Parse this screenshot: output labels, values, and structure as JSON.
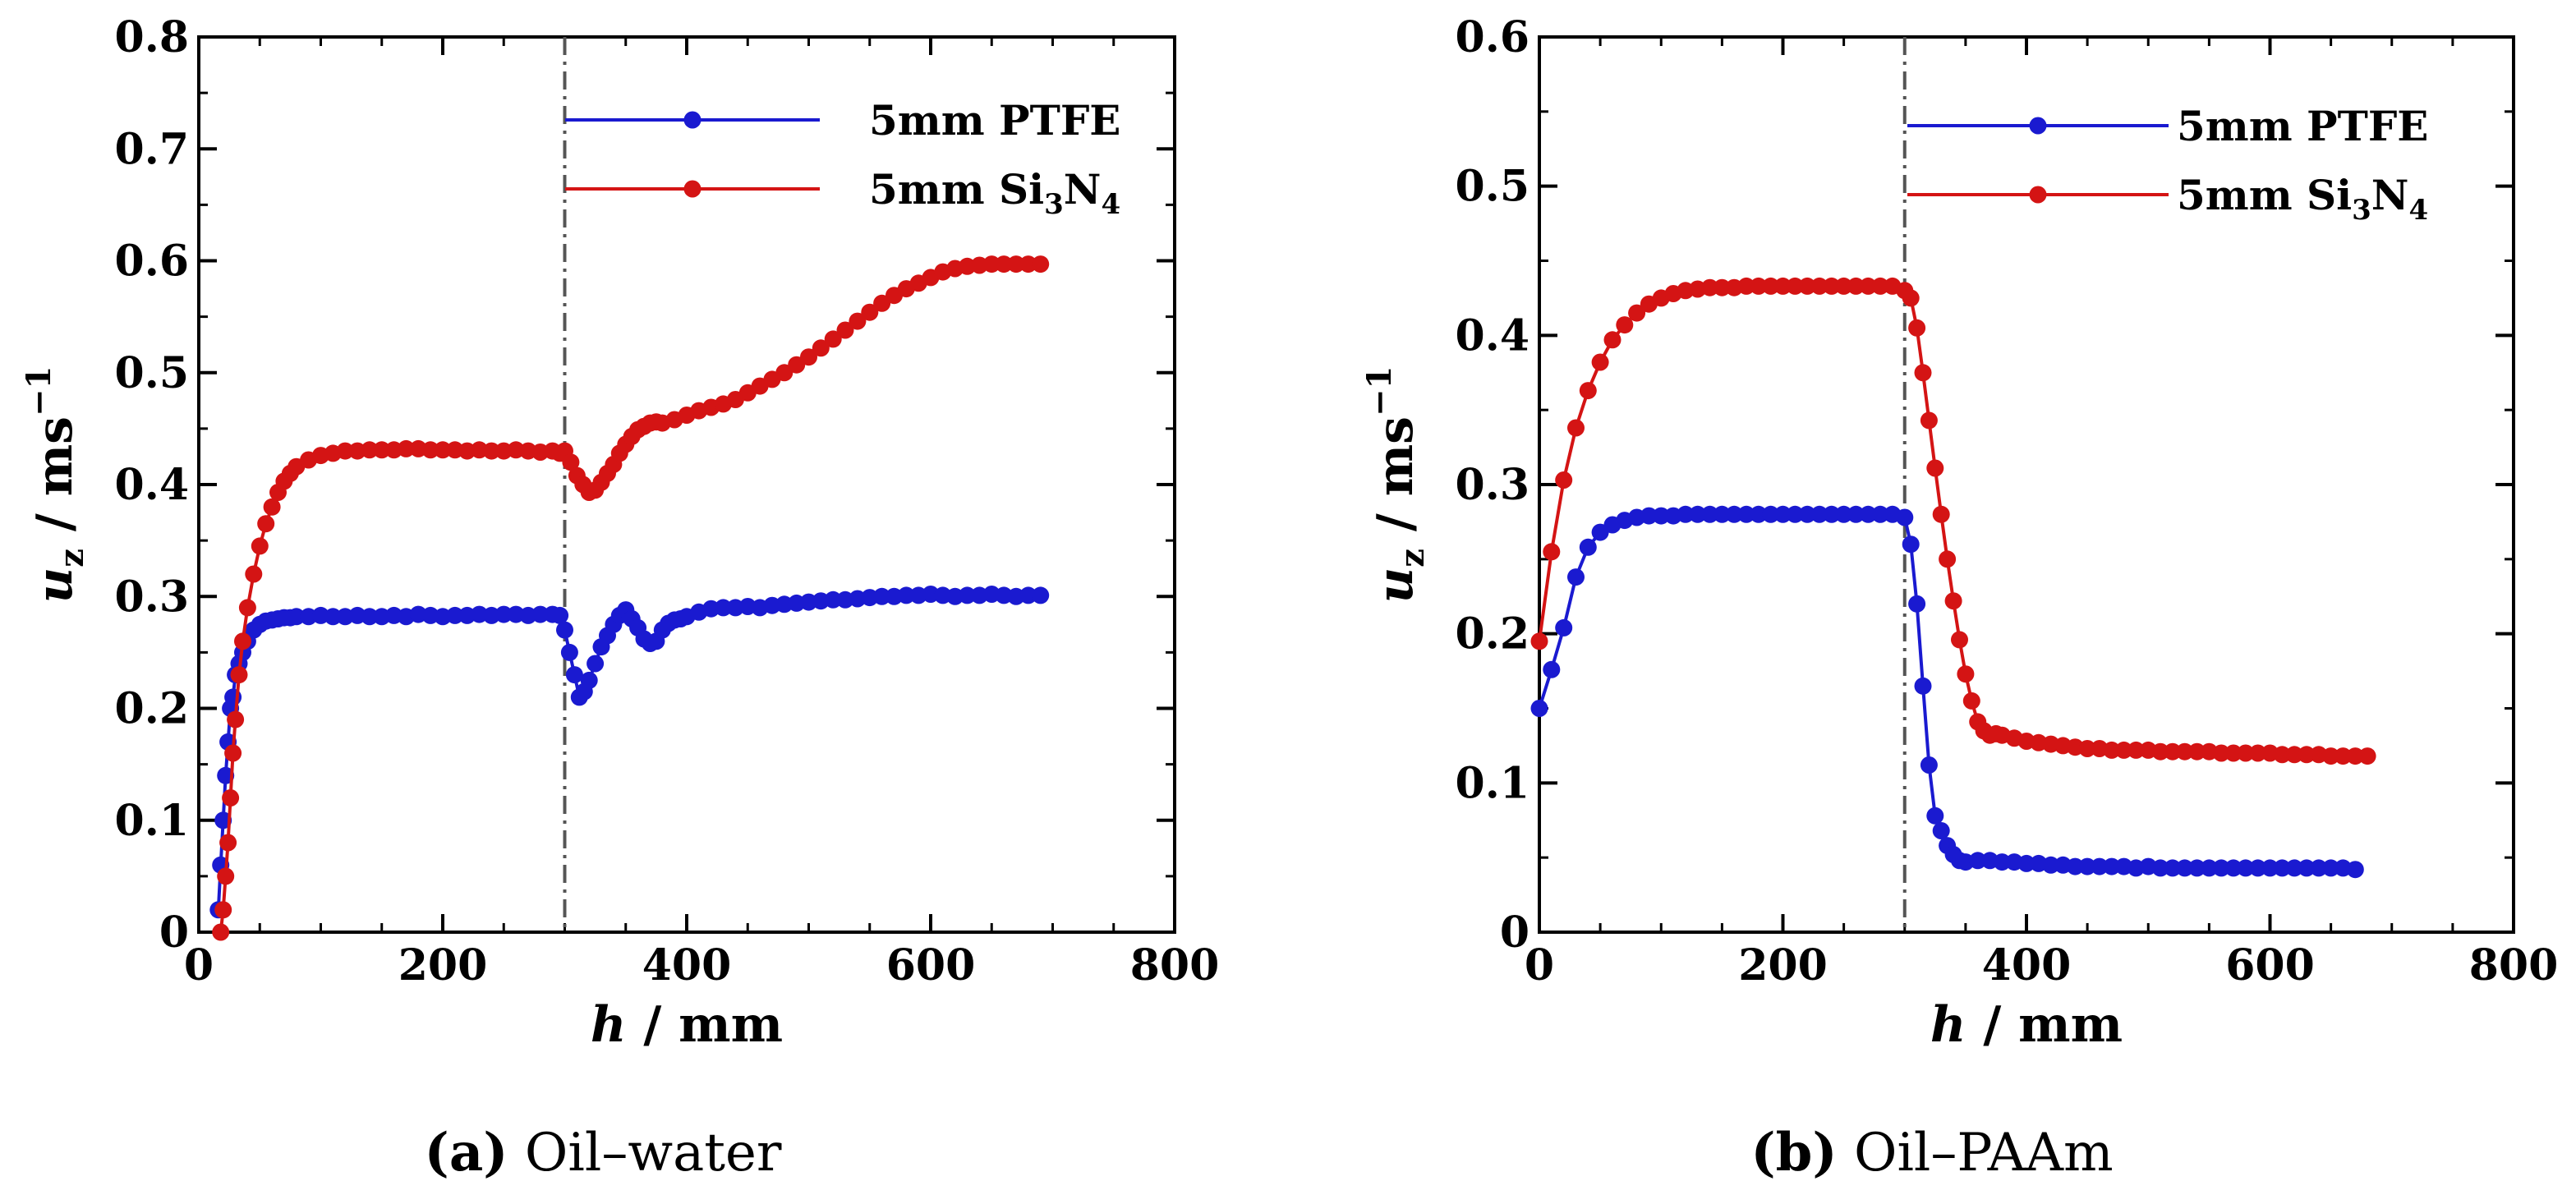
{
  "colors": {
    "ptfe": "#1a1ad0",
    "si3n4": "#d41414",
    "axis": "#000000",
    "divider": "#555555"
  },
  "chart_data": [
    {
      "type": "line",
      "panel_label": "(a)",
      "caption": "Oil–water",
      "xlabel_var": "h",
      "xlabel_unit": " / mm",
      "ylabel_var": "u",
      "ylabel_sub": "z",
      "ylabel_unit": " / ms",
      "ylabel_sup": "−1",
      "xlim": [
        0,
        800
      ],
      "ylim": [
        0,
        0.8
      ],
      "xticks": [
        "0",
        "200",
        "400",
        "600",
        "800"
      ],
      "yticks": [
        "0",
        "0.1",
        "0.2",
        "0.3",
        "0.4",
        "0.5",
        "0.6",
        "0.7",
        "0.8"
      ],
      "divider_x": 300,
      "legend": [
        "5mm PTFE",
        "5mm Si3N4"
      ],
      "series": [
        {
          "name": "5mm PTFE",
          "x": [
            16,
            18,
            20,
            22,
            24,
            26,
            28,
            30,
            33,
            36,
            40,
            45,
            50,
            55,
            60,
            65,
            70,
            75,
            80,
            90,
            100,
            110,
            120,
            130,
            140,
            150,
            160,
            170,
            180,
            190,
            200,
            210,
            220,
            230,
            240,
            250,
            260,
            270,
            280,
            290,
            296,
            300,
            304,
            308,
            312,
            316,
            320,
            325,
            330,
            335,
            340,
            345,
            350,
            355,
            360,
            365,
            370,
            375,
            380,
            385,
            390,
            395,
            400,
            410,
            420,
            430,
            440,
            450,
            460,
            470,
            480,
            490,
            500,
            510,
            520,
            530,
            540,
            550,
            560,
            570,
            580,
            590,
            600,
            610,
            620,
            630,
            640,
            650,
            660,
            670,
            680,
            690
          ],
          "y": [
            0.02,
            0.06,
            0.1,
            0.14,
            0.17,
            0.2,
            0.21,
            0.23,
            0.24,
            0.25,
            0.26,
            0.27,
            0.275,
            0.278,
            0.279,
            0.28,
            0.281,
            0.281,
            0.282,
            0.282,
            0.283,
            0.282,
            0.282,
            0.283,
            0.282,
            0.282,
            0.283,
            0.282,
            0.284,
            0.283,
            0.282,
            0.283,
            0.283,
            0.284,
            0.283,
            0.284,
            0.284,
            0.283,
            0.284,
            0.284,
            0.283,
            0.27,
            0.25,
            0.23,
            0.21,
            0.215,
            0.225,
            0.24,
            0.255,
            0.265,
            0.275,
            0.283,
            0.288,
            0.28,
            0.272,
            0.262,
            0.258,
            0.26,
            0.27,
            0.276,
            0.279,
            0.28,
            0.282,
            0.286,
            0.289,
            0.29,
            0.29,
            0.291,
            0.29,
            0.292,
            0.293,
            0.294,
            0.295,
            0.296,
            0.297,
            0.297,
            0.298,
            0.299,
            0.3,
            0.3,
            0.301,
            0.301,
            0.302,
            0.301,
            0.3,
            0.301,
            0.301,
            0.302,
            0.301,
            0.3,
            0.301,
            0.301
          ]
        },
        {
          "name": "5mm Si3N4",
          "x": [
            18,
            20,
            22,
            24,
            26,
            28,
            30,
            33,
            36,
            40,
            45,
            50,
            55,
            60,
            65,
            70,
            75,
            80,
            90,
            100,
            110,
            120,
            130,
            140,
            150,
            160,
            170,
            180,
            190,
            200,
            210,
            220,
            230,
            240,
            250,
            260,
            270,
            280,
            290,
            296,
            300,
            305,
            310,
            315,
            320,
            325,
            330,
            335,
            340,
            345,
            350,
            355,
            360,
            365,
            370,
            375,
            380,
            390,
            400,
            410,
            420,
            430,
            440,
            450,
            460,
            470,
            480,
            490,
            500,
            510,
            520,
            530,
            540,
            550,
            560,
            570,
            580,
            590,
            600,
            610,
            620,
            630,
            640,
            650,
            660,
            670,
            680,
            690
          ],
          "y": [
            0.0,
            0.02,
            0.05,
            0.08,
            0.12,
            0.16,
            0.19,
            0.23,
            0.26,
            0.29,
            0.32,
            0.345,
            0.365,
            0.38,
            0.393,
            0.403,
            0.41,
            0.416,
            0.422,
            0.426,
            0.428,
            0.43,
            0.43,
            0.431,
            0.431,
            0.431,
            0.432,
            0.432,
            0.431,
            0.431,
            0.431,
            0.43,
            0.431,
            0.43,
            0.43,
            0.431,
            0.43,
            0.429,
            0.43,
            0.428,
            0.43,
            0.42,
            0.408,
            0.4,
            0.393,
            0.395,
            0.402,
            0.41,
            0.418,
            0.428,
            0.436,
            0.443,
            0.449,
            0.452,
            0.455,
            0.456,
            0.455,
            0.458,
            0.462,
            0.466,
            0.469,
            0.472,
            0.476,
            0.482,
            0.488,
            0.494,
            0.5,
            0.507,
            0.514,
            0.522,
            0.53,
            0.538,
            0.546,
            0.554,
            0.562,
            0.569,
            0.575,
            0.58,
            0.585,
            0.59,
            0.593,
            0.595,
            0.596,
            0.597,
            0.597,
            0.597,
            0.597,
            0.597
          ]
        }
      ]
    },
    {
      "type": "line",
      "panel_label": "(b)",
      "caption": "Oil–PAAm",
      "xlabel_var": "h",
      "xlabel_unit": " / mm",
      "ylabel_var": "u",
      "ylabel_sub": "z",
      "ylabel_unit": " / ms",
      "ylabel_sup": "−1",
      "xlim": [
        0,
        800
      ],
      "ylim": [
        0,
        0.6
      ],
      "xticks": [
        "0",
        "200",
        "400",
        "600",
        "800"
      ],
      "yticks": [
        "0",
        "0.1",
        "0.2",
        "0.3",
        "0.4",
        "0.5",
        "0.6"
      ],
      "divider_x": 300,
      "legend": [
        "5mm PTFE",
        "5mm Si3N4"
      ],
      "series": [
        {
          "name": "5mm PTFE",
          "x": [
            0,
            10,
            20,
            30,
            40,
            50,
            60,
            70,
            80,
            90,
            100,
            110,
            120,
            130,
            140,
            150,
            160,
            170,
            180,
            190,
            200,
            210,
            220,
            230,
            240,
            250,
            260,
            270,
            280,
            290,
            300,
            305,
            310,
            315,
            320,
            325,
            330,
            335,
            340,
            345,
            350,
            360,
            370,
            380,
            390,
            400,
            410,
            420,
            430,
            440,
            450,
            460,
            470,
            480,
            490,
            500,
            510,
            520,
            530,
            540,
            550,
            560,
            570,
            580,
            590,
            600,
            610,
            620,
            630,
            640,
            650,
            660,
            670
          ],
          "y": [
            0.15,
            0.176,
            0.204,
            0.238,
            0.258,
            0.268,
            0.273,
            0.276,
            0.278,
            0.279,
            0.279,
            0.279,
            0.28,
            0.28,
            0.28,
            0.28,
            0.28,
            0.28,
            0.28,
            0.28,
            0.28,
            0.28,
            0.28,
            0.28,
            0.28,
            0.28,
            0.28,
            0.28,
            0.28,
            0.28,
            0.278,
            0.26,
            0.22,
            0.165,
            0.112,
            0.078,
            0.068,
            0.058,
            0.052,
            0.048,
            0.047,
            0.048,
            0.048,
            0.047,
            0.047,
            0.046,
            0.046,
            0.045,
            0.045,
            0.044,
            0.044,
            0.044,
            0.044,
            0.044,
            0.043,
            0.044,
            0.043,
            0.043,
            0.043,
            0.043,
            0.043,
            0.043,
            0.043,
            0.043,
            0.043,
            0.043,
            0.043,
            0.043,
            0.043,
            0.043,
            0.043,
            0.043,
            0.042
          ]
        },
        {
          "name": "5mm Si3N4",
          "x": [
            0,
            10,
            20,
            30,
            40,
            50,
            60,
            70,
            80,
            90,
            100,
            110,
            120,
            130,
            140,
            150,
            160,
            170,
            180,
            190,
            200,
            210,
            220,
            230,
            240,
            250,
            260,
            270,
            280,
            290,
            300,
            305,
            310,
            315,
            320,
            325,
            330,
            335,
            340,
            345,
            350,
            355,
            360,
            365,
            370,
            375,
            380,
            390,
            400,
            410,
            420,
            430,
            440,
            450,
            460,
            470,
            480,
            490,
            500,
            510,
            520,
            530,
            540,
            550,
            560,
            570,
            580,
            590,
            600,
            610,
            620,
            630,
            640,
            650,
            660,
            670,
            680
          ],
          "y": [
            0.195,
            0.255,
            0.303,
            0.338,
            0.363,
            0.382,
            0.397,
            0.407,
            0.415,
            0.421,
            0.425,
            0.428,
            0.43,
            0.431,
            0.432,
            0.432,
            0.432,
            0.433,
            0.433,
            0.433,
            0.433,
            0.433,
            0.433,
            0.433,
            0.433,
            0.433,
            0.433,
            0.433,
            0.433,
            0.433,
            0.43,
            0.425,
            0.405,
            0.375,
            0.343,
            0.311,
            0.28,
            0.25,
            0.222,
            0.196,
            0.173,
            0.155,
            0.141,
            0.135,
            0.132,
            0.133,
            0.132,
            0.13,
            0.128,
            0.127,
            0.126,
            0.125,
            0.124,
            0.123,
            0.123,
            0.122,
            0.122,
            0.122,
            0.122,
            0.121,
            0.121,
            0.121,
            0.121,
            0.121,
            0.12,
            0.12,
            0.12,
            0.12,
            0.12,
            0.119,
            0.119,
            0.119,
            0.119,
            0.118,
            0.118,
            0.118,
            0.118
          ]
        }
      ]
    }
  ]
}
